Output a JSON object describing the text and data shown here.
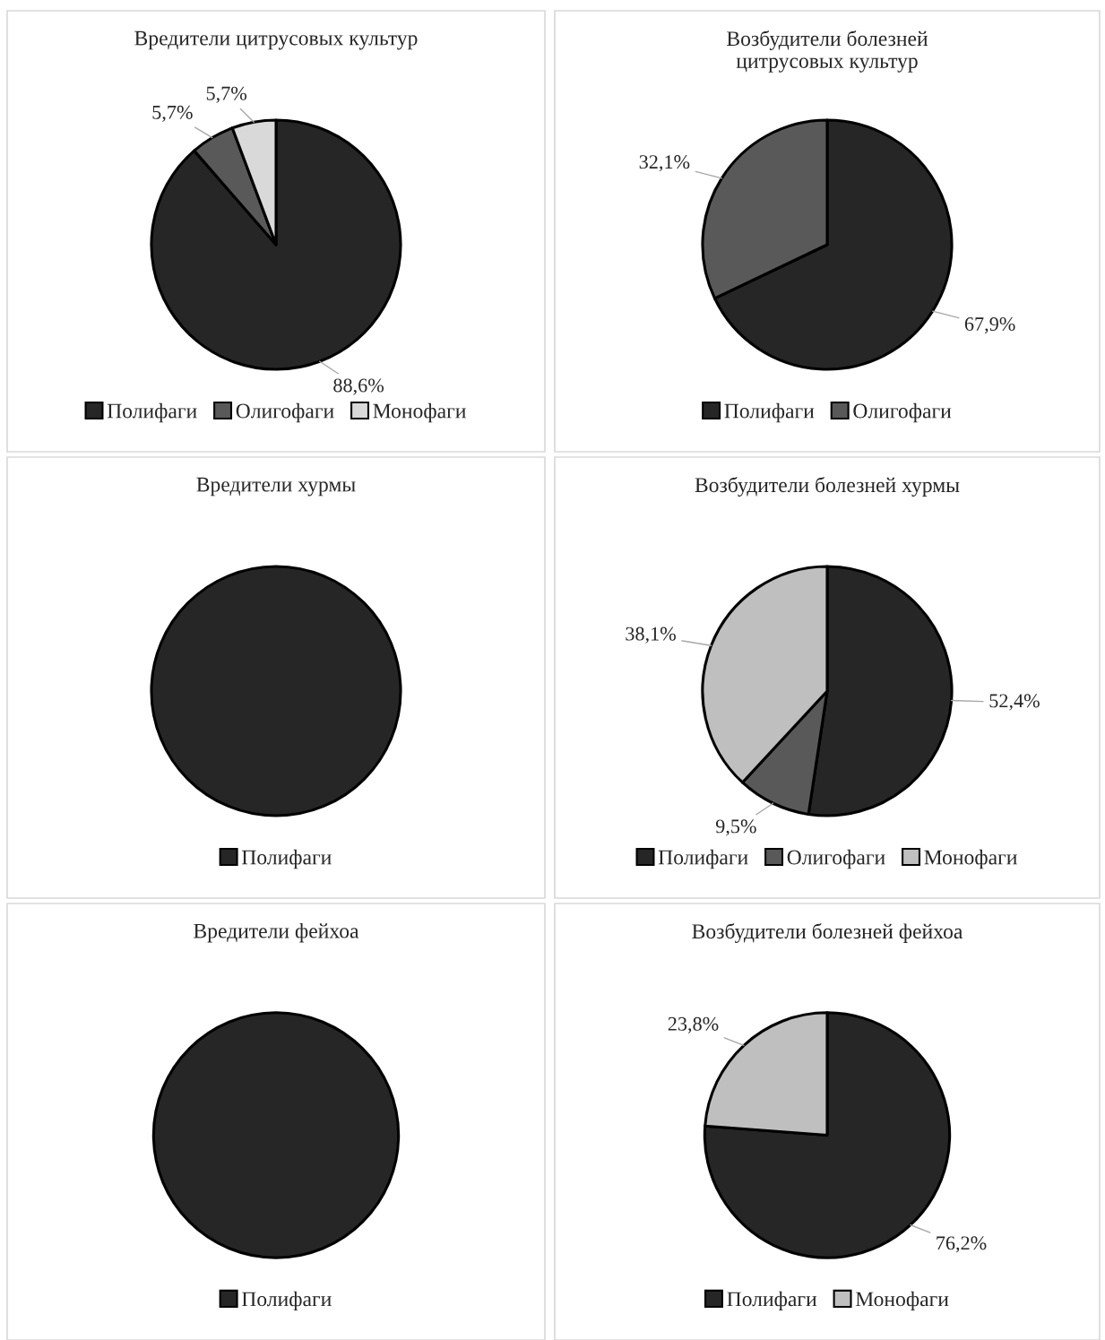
{
  "chart_data": [
    {
      "type": "pie",
      "title": "Вредители цитрусовых культур",
      "categories": [
        "Полифаги",
        "Олигофаги",
        "Монофаги"
      ],
      "values": [
        88.6,
        5.7,
        5.7
      ],
      "colors": [
        "#262626",
        "#595959",
        "#d9d9d9"
      ],
      "value_labels": [
        "88,6%",
        "5,7%",
        "5,7%"
      ],
      "legend": "bottom"
    },
    {
      "type": "pie",
      "title": "Возбудители болезней\nцитрусовых культур",
      "categories": [
        "Полифаги",
        "Олигофаги"
      ],
      "values": [
        67.9,
        32.1
      ],
      "colors": [
        "#262626",
        "#595959"
      ],
      "value_labels": [
        "67,9%",
        "32,1%"
      ],
      "legend": "bottom"
    },
    {
      "type": "pie",
      "title": "Вредители хурмы",
      "categories": [
        "Полифаги"
      ],
      "values": [
        100
      ],
      "colors": [
        "#262626"
      ],
      "value_labels": [
        null
      ],
      "legend": "bottom"
    },
    {
      "type": "pie",
      "title": "Возбудители болезней хурмы",
      "categories": [
        "Полифаги",
        "Олигофаги",
        "Монофаги"
      ],
      "values": [
        52.4,
        9.5,
        38.1
      ],
      "colors": [
        "#262626",
        "#595959",
        "#bfbfbf"
      ],
      "value_labels": [
        "52,4%",
        "9,5%",
        "38,1%"
      ],
      "legend": "bottom"
    },
    {
      "type": "pie",
      "title": "Вредители фейхоа",
      "categories": [
        "Полифаги"
      ],
      "values": [
        100
      ],
      "colors": [
        "#262626"
      ],
      "value_labels": [
        null
      ],
      "legend": "bottom"
    },
    {
      "type": "pie",
      "title": "Возбудители болезней фейхоа",
      "categories": [
        "Полифаги",
        "Монофаги"
      ],
      "values": [
        76.2,
        23.8
      ],
      "colors": [
        "#262626",
        "#bfbfbf"
      ],
      "value_labels": [
        "76,2%",
        "23,8%"
      ],
      "legend": "bottom"
    }
  ]
}
